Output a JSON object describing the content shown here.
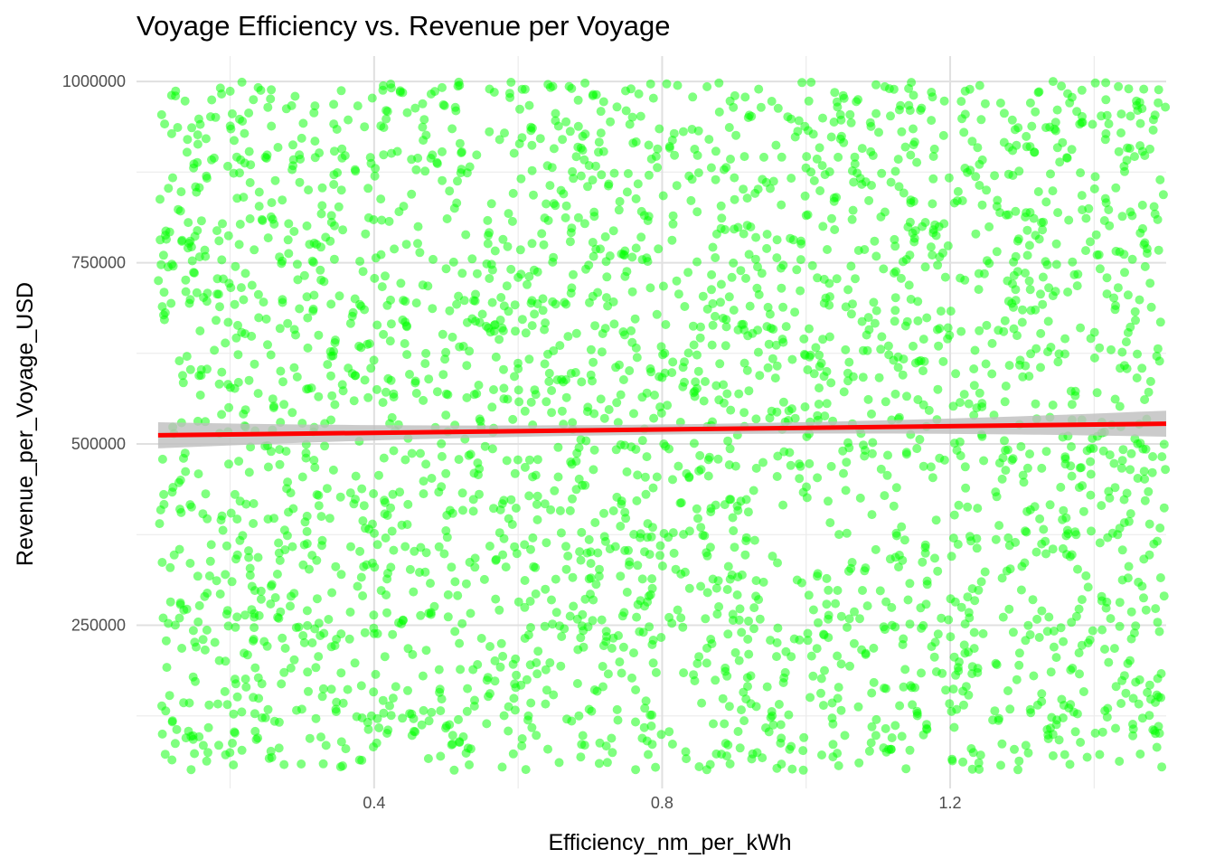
{
  "chart_data": {
    "type": "scatter",
    "title": "Voyage Efficiency vs. Revenue per Voyage",
    "xlabel": "Efficiency_nm_per_kWh",
    "ylabel": "Revenue_per_Voyage_USD",
    "x_ticks": [
      0.4,
      0.8,
      1.2
    ],
    "x_tick_labels": [
      "0.4",
      "0.8",
      "1.2"
    ],
    "x_minor_ticks": [
      0.2,
      0.6,
      1.0,
      1.4
    ],
    "y_ticks": [
      250000,
      500000,
      750000,
      1000000
    ],
    "y_tick_labels": [
      "250000",
      "500000",
      "750000",
      "1000000"
    ],
    "y_minor_ticks": [
      125000,
      375000,
      625000,
      875000
    ],
    "xlim": [
      0.07,
      1.5
    ],
    "ylim": [
      25000,
      1035000
    ],
    "grid": true,
    "legend": "none",
    "point_color": "#00FF00",
    "point_opacity": 0.5,
    "n_points": 3000,
    "x_data_range": [
      0.1,
      1.5
    ],
    "y_data_range": [
      50000,
      1000000
    ],
    "fit_line": {
      "method": "linear",
      "color": "#FF0000",
      "band_color": "#BEBEBE",
      "x": [
        0.1,
        1.5
      ],
      "y": [
        512000,
        528000
      ],
      "ci_halfwidth_ends": 18000,
      "ci_halfwidth_center": 7000
    }
  }
}
